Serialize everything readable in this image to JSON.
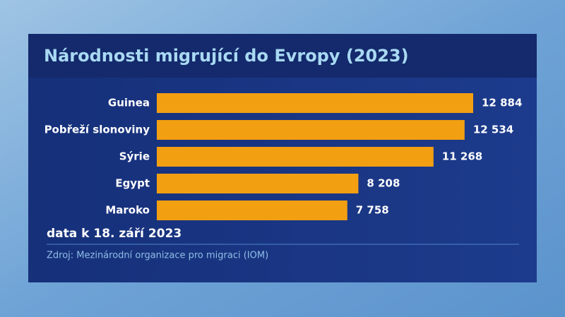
{
  "chart_data": {
    "type": "bar",
    "orientation": "horizontal",
    "title": "Národnosti migrující do Evropy (2023)",
    "categories": [
      "Guinea",
      "Pobřeží slonoviny",
      "Sýrie",
      "Egypt",
      "Maroko"
    ],
    "values": [
      12884,
      12534,
      11268,
      8208,
      7758
    ],
    "value_labels": [
      "12 884",
      "12 534",
      "11 268",
      "8 208",
      "7 758"
    ],
    "color": "#f29f12",
    "note": "data k 18. září 2023",
    "source": "Zdroj: Mezinárodní organizace pro migraci (IOM)"
  }
}
